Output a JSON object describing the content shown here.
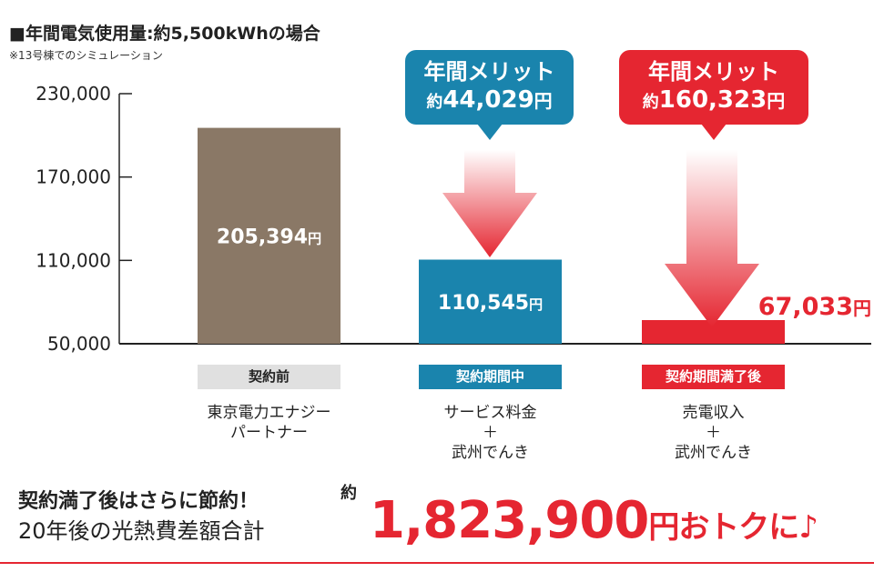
{
  "header": {
    "title": "■年間電気使用量:約5,500kWhの場合",
    "note": "※13号棟でのシミュレーション"
  },
  "colors": {
    "before": "#8a7866",
    "during": "#1a84ad",
    "after": "#e52631",
    "accent_red": "#e52631"
  },
  "chart_data": {
    "type": "bar",
    "categories": [
      "契約前",
      "契約期間中",
      "契約期間満了後"
    ],
    "values": [
      205394,
      110545,
      67033
    ],
    "value_labels": [
      "205,394",
      "110,545",
      "67,033"
    ],
    "yen_unit": "円",
    "ylim": [
      50000,
      230000
    ],
    "yticks": [
      50000,
      110000,
      170000,
      230000
    ],
    "ytick_labels": [
      "50,000",
      "110,000",
      "170,000",
      "230,000"
    ],
    "grid": false
  },
  "phases": [
    {
      "label": "契約前",
      "description": "東京電力エナジー\nパートナー"
    },
    {
      "label": "契約期間中",
      "description": "サービス料金\n＋\n武州でんき"
    },
    {
      "label": "契約期間満了後",
      "description": "売電収入\n＋\n武州でんき"
    }
  ],
  "merits": [
    {
      "title": "年間メリット",
      "prefix": "約",
      "amount": "44,029",
      "unit": "円"
    },
    {
      "title": "年間メリット",
      "prefix": "約",
      "amount": "160,323",
      "unit": "円"
    }
  ],
  "summary": {
    "line1": "契約満了後はさらに節約！",
    "line2": "20年後の光熱費差額合計",
    "approx": "約",
    "total": "1,823,900",
    "unit": "円",
    "tail": "おトクに♪"
  }
}
